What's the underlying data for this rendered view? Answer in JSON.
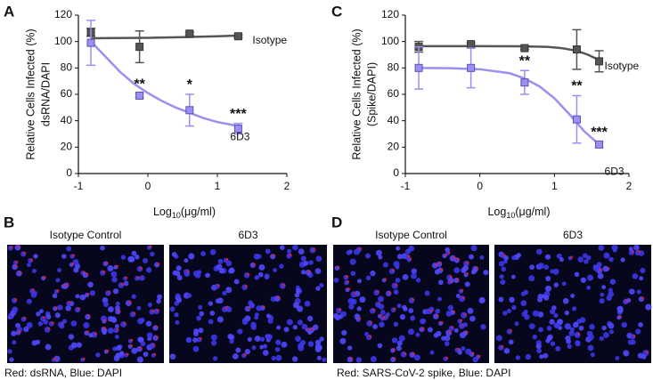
{
  "chart_data": [
    {
      "type": "line",
      "panel_label": "A",
      "y_label": [
        "Relative Cells Infected (%)",
        "dsRNA/DAPI"
      ],
      "x_label": {
        "base": "Log",
        "sub": "10",
        "rest": "(μg/ml)"
      },
      "xlim": [
        -1,
        2
      ],
      "xticks": [
        -1,
        0,
        1,
        2
      ],
      "ylim": [
        0,
        120
      ],
      "yticks": [
        0,
        20,
        40,
        60,
        80,
        100,
        120
      ],
      "series": [
        {
          "name": "Isotype",
          "color": "#555555",
          "x": [
            -0.82,
            -0.12,
            0.6,
            1.3
          ],
          "values": [
            107,
            96,
            106,
            104
          ],
          "errors": [
            3,
            12,
            1,
            1
          ],
          "fit_x": [
            -0.82,
            -0.5,
            0,
            0.5,
            1,
            1.3
          ],
          "fit_values": [
            102.5,
            102.6,
            102.8,
            103.3,
            104,
            104.5
          ]
        },
        {
          "name": "6D3",
          "color": "#9b8ff0",
          "x": [
            -0.82,
            -0.12,
            0.6,
            1.3
          ],
          "values": [
            99,
            59,
            48,
            34
          ],
          "errors": [
            17,
            1.5,
            12,
            4
          ],
          "value_annotations": [
            null,
            "**",
            "*",
            "***"
          ],
          "fit_x": [
            -0.82,
            -0.6,
            -0.4,
            -0.2,
            0,
            0.2,
            0.4,
            0.6,
            0.8,
            1.0,
            1.3
          ],
          "fit_values": [
            100,
            88,
            77,
            68,
            61,
            55,
            50,
            46,
            42,
            39,
            36
          ]
        }
      ]
    },
    {
      "type": "line",
      "panel_label": "C",
      "y_label": [
        "Relative Cells Infected (%)",
        "(Spike/DAPI)"
      ],
      "x_label": {
        "base": "Log",
        "sub": "10",
        "rest": "(μg/ml)"
      },
      "xlim": [
        -1,
        2
      ],
      "xticks": [
        -1,
        0,
        1,
        2
      ],
      "ylim": [
        0,
        120
      ],
      "yticks": [
        0,
        20,
        40,
        60,
        80,
        100,
        120
      ],
      "series": [
        {
          "name": "Isotype",
          "color": "#555555",
          "x": [
            -0.82,
            -0.12,
            0.6,
            1.3,
            1.6
          ],
          "values": [
            96,
            98,
            95,
            94,
            85
          ],
          "errors": [
            4,
            1,
            1,
            15,
            8
          ],
          "fit_x": [
            -0.82,
            0,
            0.5,
            0.9,
            1.1,
            1.3,
            1.45,
            1.6
          ],
          "fit_values": [
            96.5,
            96.5,
            96.4,
            96,
            95,
            93,
            90,
            86
          ]
        },
        {
          "name": "6D3",
          "color": "#9b8ff0",
          "x": [
            -0.82,
            -0.12,
            0.6,
            1.3,
            1.6
          ],
          "values": [
            80,
            80,
            69,
            41,
            22
          ],
          "errors": [
            16,
            15,
            9,
            18,
            2
          ],
          "value_annotations": [
            null,
            null,
            "**",
            "**",
            "***"
          ],
          "fit_x": [
            -0.82,
            -0.4,
            0,
            0.4,
            0.6,
            0.8,
            1.0,
            1.2,
            1.4,
            1.6
          ],
          "fit_values": [
            80,
            79.8,
            79,
            76,
            72,
            66,
            57,
            45,
            32,
            22
          ]
        }
      ]
    }
  ],
  "image_panels": [
    {
      "panel_label": "B",
      "images": [
        {
          "title": "Isotype Control"
        },
        {
          "title": "6D3"
        }
      ],
      "caption": "Red: dsRNA, Blue: DAPI"
    },
    {
      "panel_label": "D",
      "images": [
        {
          "title": "Isotype Control"
        },
        {
          "title": "6D3"
        }
      ],
      "caption": "Red: SARS-CoV-2 spike, Blue: DAPI"
    }
  ]
}
